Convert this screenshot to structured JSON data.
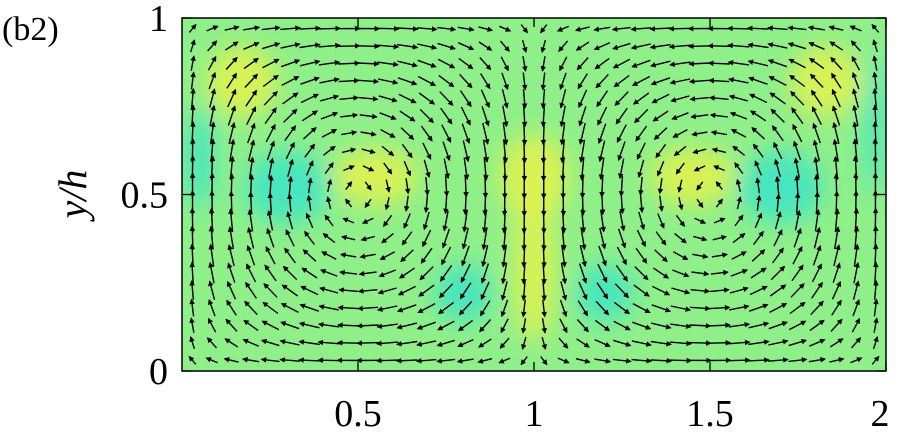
{
  "chart_data": {
    "type": "quiver-contour",
    "panel_label": "(b2)",
    "xlabel": "",
    "ylabel": "y/h",
    "xlim": [
      0,
      2
    ],
    "ylim": [
      0,
      1
    ],
    "x_ticks": [
      0.5,
      1,
      1.5,
      2
    ],
    "x_tick_labels": [
      "0.5",
      "1",
      "1.5",
      "2"
    ],
    "y_ticks": [
      0,
      0.5,
      1
    ],
    "y_tick_labels": [
      "0",
      "0.5",
      "1"
    ],
    "colors": {
      "background_field": "#8ff08a",
      "cool": "#38e4c8",
      "warm": "#e6f24a",
      "arrows": "#000000"
    },
    "flow_pattern": "four counter-rotating cells with central downward jet at x=1"
  }
}
